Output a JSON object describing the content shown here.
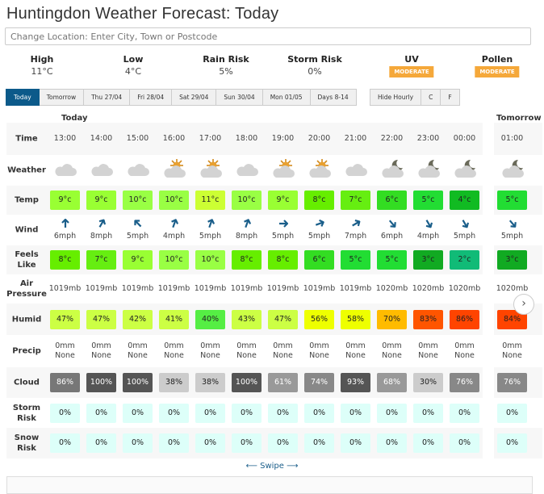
{
  "title": "Huntingdon Weather Forecast: Today",
  "search": {
    "placeholder": "Change Location: Enter City, Town or Postcode"
  },
  "summary": [
    {
      "label": "High",
      "value": "11°C"
    },
    {
      "label": "Low",
      "value": "4°C"
    },
    {
      "label": "Rain Risk",
      "value": "5%"
    },
    {
      "label": "Storm Risk",
      "value": "0%"
    },
    {
      "label": "UV",
      "badge": "MODERATE"
    },
    {
      "label": "Pollen",
      "badge": "MODERATE"
    }
  ],
  "accent": "#0c5a8a",
  "badge_color": "#f5a83a",
  "tabs": [
    "Today",
    "Tomorrow",
    "Thu 27/04",
    "Fri 28/04",
    "Sat 29/04",
    "Sun 30/04",
    "Mon 01/05",
    "Days 8-14"
  ],
  "active_tab": "Today",
  "options": [
    "Hide Hourly",
    "C",
    "F"
  ],
  "days": {
    "today": "Today",
    "tomorrow": "Tomorrow"
  },
  "row_labels": {
    "time": "Time",
    "weather": "Weather",
    "temp": "Temp",
    "wind": "Wind",
    "feels": "Feels Like",
    "pressure": "Air Pressure",
    "humid": "Humid",
    "precip": "Precip",
    "cloud": "Cloud",
    "storm": "Storm Risk",
    "snow": "Snow Risk"
  },
  "hours": [
    {
      "time": "13:00",
      "icon": "cloud-icon",
      "temp": "9°c",
      "temp_c": "#99ff33",
      "wind_dir": 180,
      "wind": "6mph",
      "feels": "8°c",
      "feels_c": "#66ee00",
      "pressure": "1019mb",
      "humid": "47%",
      "humid_c": "#ccff44",
      "precip": "0mm",
      "precip_type": "None",
      "cloud": "86%",
      "cloud_c": "#777777",
      "storm": "0%",
      "snow": "0%"
    },
    {
      "time": "14:00",
      "icon": "cloud-icon",
      "temp": "9°c",
      "temp_c": "#99ff33",
      "wind_dir": 210,
      "wind": "8mph",
      "feels": "7°c",
      "feels_c": "#66ee11",
      "pressure": "1019mb",
      "humid": "47%",
      "humid_c": "#ccff44",
      "precip": "0mm",
      "precip_type": "None",
      "cloud": "100%",
      "cloud_c": "#555555",
      "storm": "0%",
      "snow": "0%"
    },
    {
      "time": "15:00",
      "icon": "cloud-icon",
      "temp": "10°c",
      "temp_c": "#99ff44",
      "wind_dir": 135,
      "wind": "5mph",
      "feels": "9°c",
      "feels_c": "#99ff33",
      "pressure": "1019mb",
      "humid": "42%",
      "humid_c": "#ccff44",
      "precip": "0mm",
      "precip_type": "None",
      "cloud": "100%",
      "cloud_c": "#555555",
      "storm": "0%",
      "snow": "0%"
    },
    {
      "time": "16:00",
      "icon": "sun-cloud-icon",
      "temp": "10°c",
      "temp_c": "#99ff44",
      "wind_dir": 200,
      "wind": "4mph",
      "feels": "10°c",
      "feels_c": "#99ff44",
      "pressure": "1019mb",
      "humid": "41%",
      "humid_c": "#ccff44",
      "precip": "0mm",
      "precip_type": "None",
      "cloud": "38%",
      "cloud_c": "#cccccc",
      "storm": "0%",
      "snow": "0%"
    },
    {
      "time": "17:00",
      "icon": "sun-cloud-icon",
      "temp": "11°c",
      "temp_c": "#ccff33",
      "wind_dir": 200,
      "wind": "5mph",
      "feels": "10°c",
      "feels_c": "#99ff44",
      "pressure": "1019mb",
      "humid": "40%",
      "humid_c": "#55ee44",
      "precip": "0mm",
      "precip_type": "None",
      "cloud": "38%",
      "cloud_c": "#cccccc",
      "storm": "0%",
      "snow": "0%"
    },
    {
      "time": "18:00",
      "icon": "cloud-icon",
      "temp": "10°c",
      "temp_c": "#99ff44",
      "wind_dir": 200,
      "wind": "8mph",
      "feels": "8°c",
      "feels_c": "#66ee00",
      "pressure": "1019mb",
      "humid": "43%",
      "humid_c": "#ccff44",
      "precip": "0mm",
      "precip_type": "None",
      "cloud": "100%",
      "cloud_c": "#555555",
      "storm": "0%",
      "snow": "0%"
    },
    {
      "time": "19:00",
      "icon": "sun-cloud-icon",
      "temp": "9°c",
      "temp_c": "#99ff33",
      "wind_dir": 270,
      "wind": "5mph",
      "feels": "8°c",
      "feels_c": "#66ee00",
      "pressure": "1019mb",
      "humid": "47%",
      "humid_c": "#ccff44",
      "precip": "0mm",
      "precip_type": "None",
      "cloud": "61%",
      "cloud_c": "#999999",
      "storm": "0%",
      "snow": "0%"
    },
    {
      "time": "20:00",
      "icon": "sun-cloud-icon",
      "temp": "8°c",
      "temp_c": "#66ee00",
      "wind_dir": 250,
      "wind": "5mph",
      "feels": "6°c",
      "feels_c": "#33dd22",
      "pressure": "1019mb",
      "humid": "56%",
      "humid_c": "#eeff00",
      "precip": "0mm",
      "precip_type": "None",
      "cloud": "74%",
      "cloud_c": "#888888",
      "storm": "0%",
      "snow": "0%"
    },
    {
      "time": "21:00",
      "icon": "cloud-icon",
      "temp": "7°c",
      "temp_c": "#66ee11",
      "wind_dir": 240,
      "wind": "7mph",
      "feels": "5°c",
      "feels_c": "#22dd33",
      "pressure": "1019mb",
      "humid": "58%",
      "humid_c": "#eeff00",
      "precip": "0mm",
      "precip_type": "None",
      "cloud": "93%",
      "cloud_c": "#555555",
      "storm": "0%",
      "snow": "0%"
    },
    {
      "time": "22:00",
      "icon": "moon-cloud-icon",
      "temp": "6°c",
      "temp_c": "#33dd22",
      "wind_dir": 320,
      "wind": "6mph",
      "feels": "5°c",
      "feels_c": "#22dd33",
      "pressure": "1020mb",
      "humid": "70%",
      "humid_c": "#ffbb00",
      "precip": "0mm",
      "precip_type": "None",
      "cloud": "68%",
      "cloud_c": "#999999",
      "storm": "0%",
      "snow": "0%"
    },
    {
      "time": "23:00",
      "icon": "moon-cloud-icon",
      "temp": "5°c",
      "temp_c": "#22dd33",
      "wind_dir": 330,
      "wind": "4mph",
      "feels": "3°c",
      "feels_c": "#11aa22",
      "pressure": "1020mb",
      "humid": "83%",
      "humid_c": "#ff5500",
      "precip": "0mm",
      "precip_type": "None",
      "cloud": "30%",
      "cloud_c": "#cccccc",
      "storm": "0%",
      "snow": "0%"
    },
    {
      "time": "00:00",
      "icon": "moon-cloud-icon",
      "temp": "4°c",
      "temp_c": "#11bb22",
      "wind_dir": 330,
      "wind": "5mph",
      "feels": "2°c",
      "feels_c": "#11bb77",
      "pressure": "1020mb",
      "humid": "86%",
      "humid_c": "#ff4400",
      "precip": "0mm",
      "precip_type": "None",
      "cloud": "76%",
      "cloud_c": "#888888",
      "storm": "0%",
      "snow": "0%"
    },
    {
      "time": "01:00",
      "icon": "moon-cloud-icon",
      "temp": "5°c",
      "temp_c": "#22dd33",
      "wind_dir": 320,
      "wind": "5mph",
      "feels": "3°c",
      "feels_c": "#11aa22",
      "pressure": "1020mb",
      "humid": "84%",
      "humid_c": "#ff4400",
      "precip": "0mm",
      "precip_type": "None",
      "cloud": "76%",
      "cloud_c": "#888888",
      "storm": "0%",
      "snow": "0%"
    }
  ],
  "storm_color": "#ddfff9",
  "swipe": "Swipe"
}
